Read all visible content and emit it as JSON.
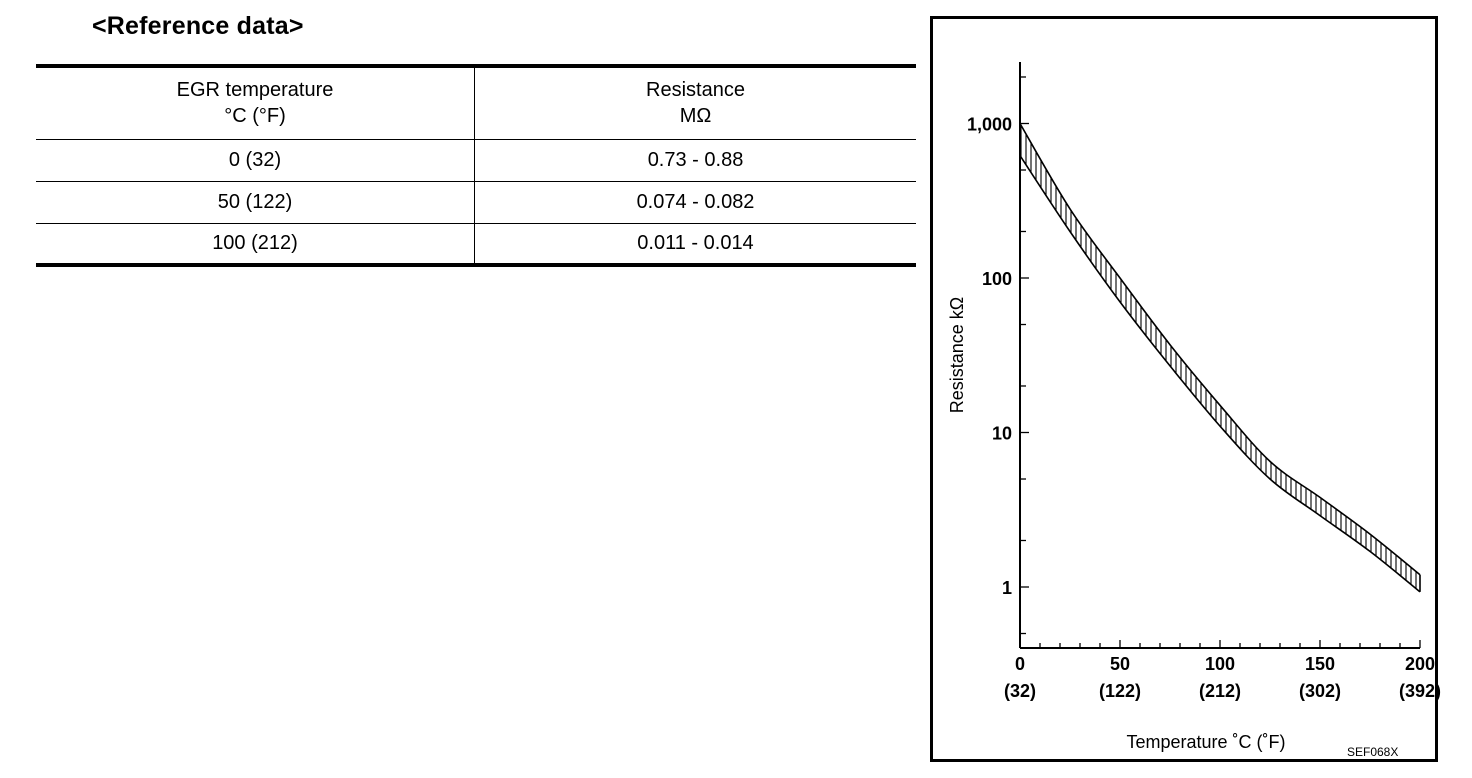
{
  "title": "<Reference data>",
  "table": {
    "headers": [
      {
        "line1": "EGR temperature",
        "line2": "°C (°F)"
      },
      {
        "line1": "Resistance",
        "line2": "MΩ"
      }
    ],
    "rows": [
      {
        "temp": "0 (32)",
        "resistance": "0.73 - 0.88"
      },
      {
        "temp": "50 (122)",
        "resistance": "0.074 - 0.082"
      },
      {
        "temp": "100 (212)",
        "resistance": "0.011 - 0.014"
      }
    ]
  },
  "chart_data": {
    "type": "area",
    "x": [
      0,
      25,
      50,
      75,
      100,
      125,
      150,
      175,
      200
    ],
    "series": [
      {
        "values": [
          1000,
          280,
          100,
          37,
          15,
          6.5,
          3.8,
          2.2,
          1.2
        ]
      },
      {
        "values": [
          620,
          200,
          70,
          27,
          11,
          5.0,
          2.9,
          1.7,
          0.93
        ]
      }
    ],
    "xlabel": "Temperature ˚C  (˚F)",
    "ylabel": "Resistance kΩ",
    "x_ticks": [
      {
        "value": 0,
        "label": "0",
        "sublabel": "(32)"
      },
      {
        "value": 50,
        "label": "50",
        "sublabel": "(122)"
      },
      {
        "value": 100,
        "label": "100",
        "sublabel": "(212)"
      },
      {
        "value": 150,
        "label": "150",
        "sublabel": "(302)"
      },
      {
        "value": 200,
        "label": "200",
        "sublabel": "(392)"
      }
    ],
    "y_ticks": [
      {
        "value": 1,
        "label": "1"
      },
      {
        "value": 10,
        "label": "10"
      },
      {
        "value": 100,
        "label": "100"
      },
      {
        "value": 1000,
        "label": "1,000"
      }
    ],
    "xlim": [
      0,
      200
    ],
    "ylim": [
      0.6,
      2500
    ],
    "yscale": "log",
    "fill": "vertical-hatch",
    "code": "SEF068X"
  }
}
